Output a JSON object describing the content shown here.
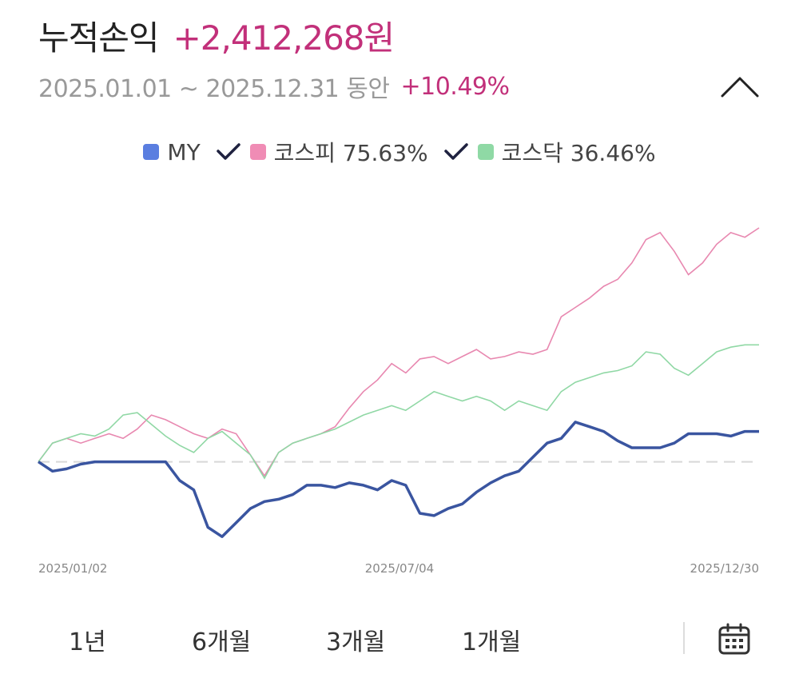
{
  "header": {
    "title": "누적손익",
    "profit": "+2,412,268원",
    "period": "2025.01.01 ~ 2025.12.31 동안",
    "rate": "+10.49%",
    "accent_color": "#c2307a"
  },
  "controls": {
    "collapse_icon": "chevron-up-icon",
    "calendar_icon": "calendar-icon"
  },
  "legend": [
    {
      "label": "MY",
      "color": "#5a7ee0",
      "check": false
    },
    {
      "label": "코스피 75.63%",
      "color": "#f08cb5",
      "check": true
    },
    {
      "label": "코스닥 36.46%",
      "color": "#8fd9a5",
      "check": true
    }
  ],
  "range_buttons": [
    "1년",
    "6개월",
    "3개월",
    "1개월"
  ],
  "chart_data": {
    "type": "line",
    "x_tick_labels": [
      "2025/01/02",
      "2025/07/04",
      "2025/12/30"
    ],
    "ylabel": "",
    "xlabel": "",
    "baseline": 0,
    "baseline_style": "dashed",
    "grid": false,
    "ylim": [
      -0.35,
      1.0
    ],
    "series": [
      {
        "name": "코스피",
        "color": "#e888b0",
        "values": [
          0,
          0.08,
          0.1,
          0.08,
          0.1,
          0.12,
          0.1,
          0.14,
          0.2,
          0.18,
          0.15,
          0.12,
          0.1,
          0.14,
          0.12,
          0.03,
          -0.06,
          0.04,
          0.08,
          0.1,
          0.12,
          0.15,
          0.23,
          0.3,
          0.35,
          0.42,
          0.38,
          0.44,
          0.45,
          0.42,
          0.45,
          0.48,
          0.44,
          0.45,
          0.47,
          0.46,
          0.48,
          0.62,
          0.66,
          0.7,
          0.75,
          0.78,
          0.85,
          0.95,
          0.98,
          0.9,
          0.8,
          0.85,
          0.93,
          0.98,
          0.96,
          1.0
        ]
      },
      {
        "name": "코스닥",
        "color": "#90d8a5",
        "values": [
          0,
          0.08,
          0.1,
          0.12,
          0.11,
          0.14,
          0.2,
          0.21,
          0.16,
          0.11,
          0.07,
          0.04,
          0.1,
          0.13,
          0.08,
          0.03,
          -0.07,
          0.04,
          0.08,
          0.1,
          0.12,
          0.14,
          0.17,
          0.2,
          0.22,
          0.24,
          0.22,
          0.26,
          0.3,
          0.28,
          0.26,
          0.28,
          0.26,
          0.22,
          0.26,
          0.24,
          0.22,
          0.3,
          0.34,
          0.36,
          0.38,
          0.39,
          0.41,
          0.47,
          0.46,
          0.4,
          0.37,
          0.42,
          0.47,
          0.49,
          0.5,
          0.5
        ]
      },
      {
        "name": "MY",
        "color": "#3a55a0",
        "values": [
          0,
          -0.04,
          -0.03,
          -0.01,
          0,
          0,
          0,
          0,
          0,
          0,
          -0.08,
          -0.12,
          -0.28,
          -0.32,
          -0.26,
          -0.2,
          -0.17,
          -0.16,
          -0.14,
          -0.1,
          -0.1,
          -0.11,
          -0.09,
          -0.1,
          -0.12,
          -0.08,
          -0.1,
          -0.22,
          -0.23,
          -0.2,
          -0.18,
          -0.13,
          -0.09,
          -0.06,
          -0.04,
          0.02,
          0.08,
          0.1,
          0.17,
          0.15,
          0.13,
          0.09,
          0.06,
          0.06,
          0.06,
          0.08,
          0.12,
          0.12,
          0.12,
          0.11,
          0.13,
          0.13
        ]
      }
    ]
  }
}
